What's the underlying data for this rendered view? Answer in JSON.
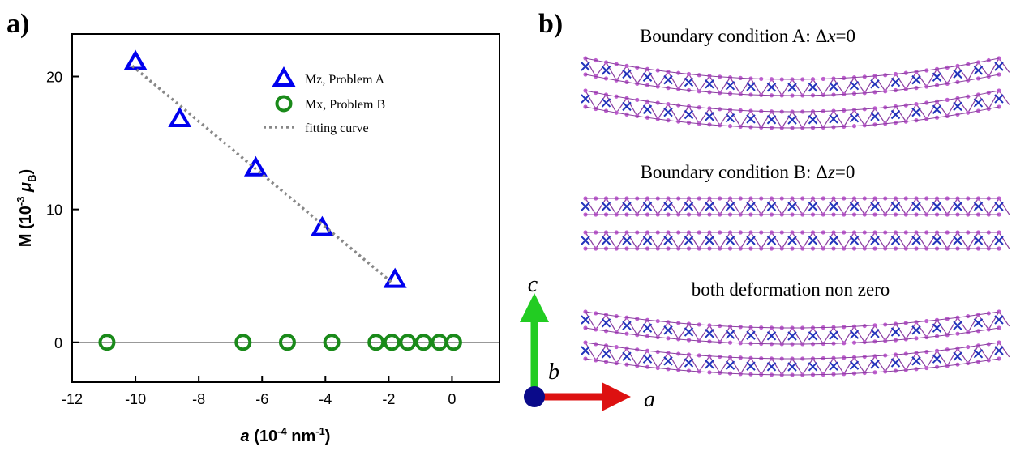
{
  "chart_data": {
    "type": "scatter",
    "panel_label": "a)",
    "xlabel_parts": [
      "a",
      " (10",
      "-4",
      " nm",
      "-1",
      ")"
    ],
    "ylabel_parts": [
      "M (10",
      "-3",
      " μ",
      "B",
      ")"
    ],
    "xlim": [
      -12,
      1.5
    ],
    "ylim": [
      -3,
      23.2
    ],
    "xticks": [
      -12,
      -10,
      -8,
      -6,
      -4,
      -2,
      0
    ],
    "yticks": [
      0,
      10,
      20
    ],
    "hlines": [
      0
    ],
    "series": [
      {
        "name": "Mz, Problem A",
        "marker": "triangle",
        "color": "#0000ee",
        "x": [
          -10.0,
          -8.6,
          -6.2,
          -4.1,
          -1.8
        ],
        "values": [
          21.1,
          16.8,
          13.1,
          8.6,
          4.7
        ]
      },
      {
        "name": "Mx, Problem B",
        "marker": "circle",
        "color": "#1a8a1a",
        "x": [
          -10.9,
          -6.6,
          -5.2,
          -3.8,
          -2.4,
          -1.9,
          -1.4,
          -0.9,
          -0.4,
          0.05
        ],
        "values": [
          0,
          0,
          0,
          0,
          0,
          0,
          0,
          0,
          0,
          0
        ]
      },
      {
        "name": "fitting curve",
        "marker": "dotted-line",
        "color": "#888888",
        "x": [
          -10.1,
          -1.9
        ],
        "values": [
          20.8,
          4.5
        ]
      }
    ]
  },
  "panel_b": {
    "panel_label": "b)",
    "captions": [
      [
        "Boundary condition A: Δ",
        "x",
        "=0"
      ],
      [
        "Boundary condition B: Δ",
        "z",
        "=0"
      ],
      [
        "both deformation non zero"
      ]
    ],
    "axis_labels": [
      "c",
      "b",
      "a"
    ]
  }
}
